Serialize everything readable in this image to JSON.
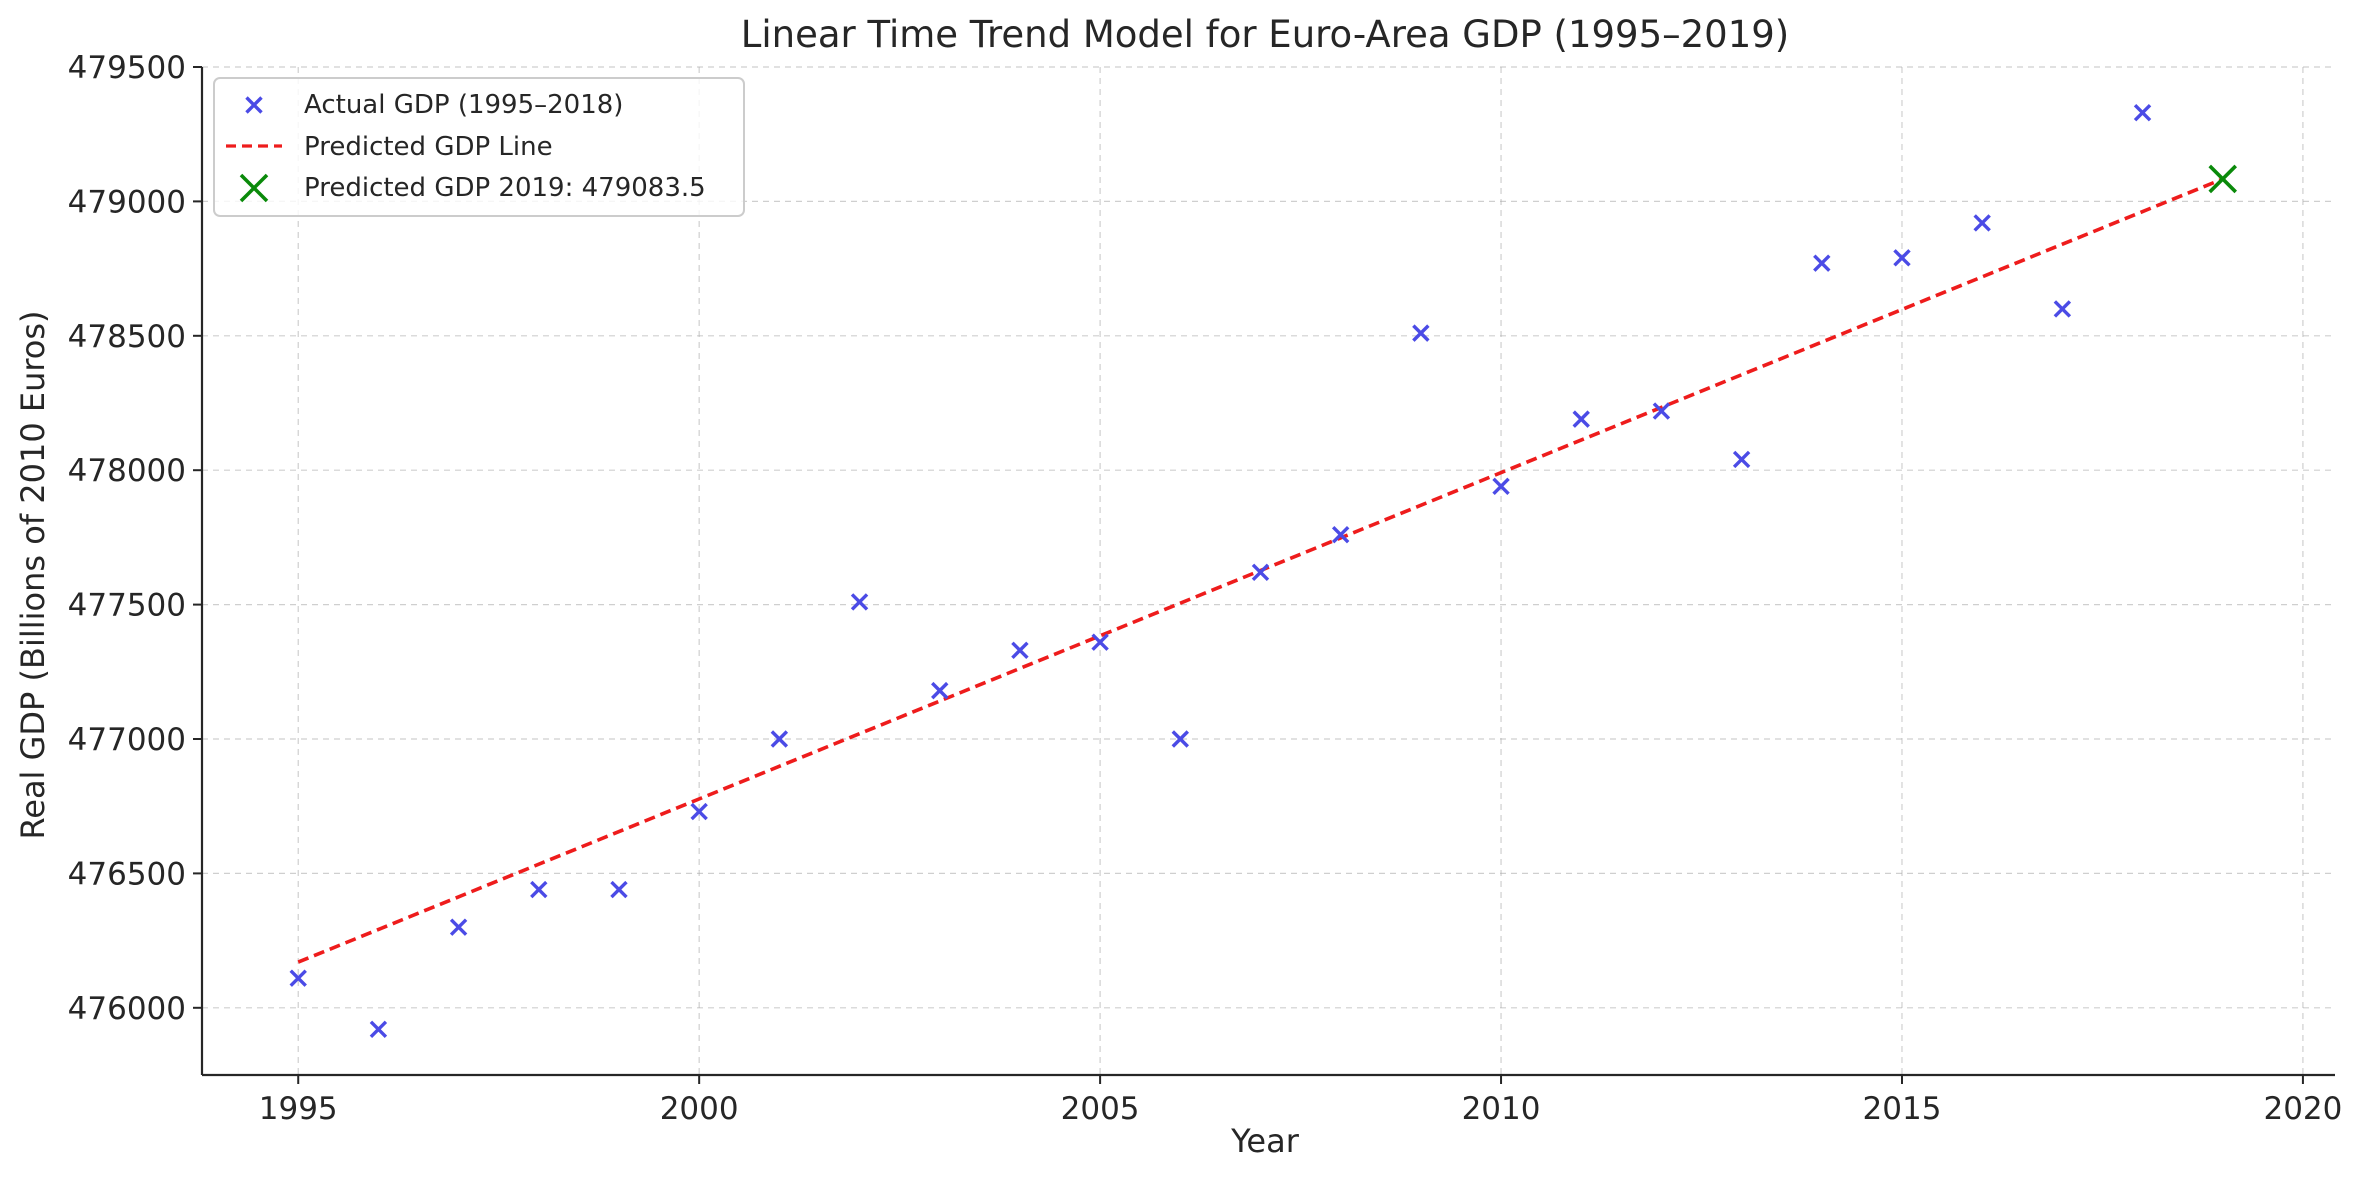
{
  "chart_data": {
    "type": "scatter",
    "title": "Linear Time Trend Model for Euro-Area GDP (1995–2019)",
    "xlabel": "Year",
    "ylabel": "Real GDP (Billions of 2010 Euros)",
    "xlim": [
      1993.8,
      2020.4
    ],
    "ylim": [
      475750,
      479500
    ],
    "xticks": [
      1995,
      2000,
      2005,
      2010,
      2015,
      2020
    ],
    "yticks": [
      476000,
      476500,
      477000,
      477500,
      478000,
      478500,
      479000,
      479500
    ],
    "grid": true,
    "legend_position": "top-left",
    "series": [
      {
        "name": "Actual GDP (1995–2018)",
        "kind": "scatter",
        "marker": "x",
        "color": "#4b4be6",
        "x": [
          1995,
          1996,
          1997,
          1998,
          1999,
          2000,
          2001,
          2002,
          2003,
          2004,
          2005,
          2006,
          2007,
          2008,
          2009,
          2010,
          2011,
          2012,
          2013,
          2014,
          2015,
          2016,
          2017,
          2018
        ],
        "y": [
          476110,
          475920,
          476300,
          476440,
          476440,
          476730,
          477000,
          477510,
          477180,
          477330,
          477360,
          477000,
          477620,
          477760,
          478510,
          477940,
          478190,
          478220,
          478040,
          478770,
          478790,
          478920,
          478600,
          479330
        ]
      },
      {
        "name": "Predicted GDP Line",
        "kind": "line",
        "style": "dashed",
        "color": "#ee1c1c",
        "x": [
          1995,
          2019
        ],
        "y": [
          476170,
          479083.5
        ]
      },
      {
        "name": "Predicted GDP 2019: 479083.5",
        "kind": "scatter",
        "marker": "x",
        "color": "#0a8a0a",
        "x": [
          2019
        ],
        "y": [
          479083.5
        ]
      }
    ]
  }
}
